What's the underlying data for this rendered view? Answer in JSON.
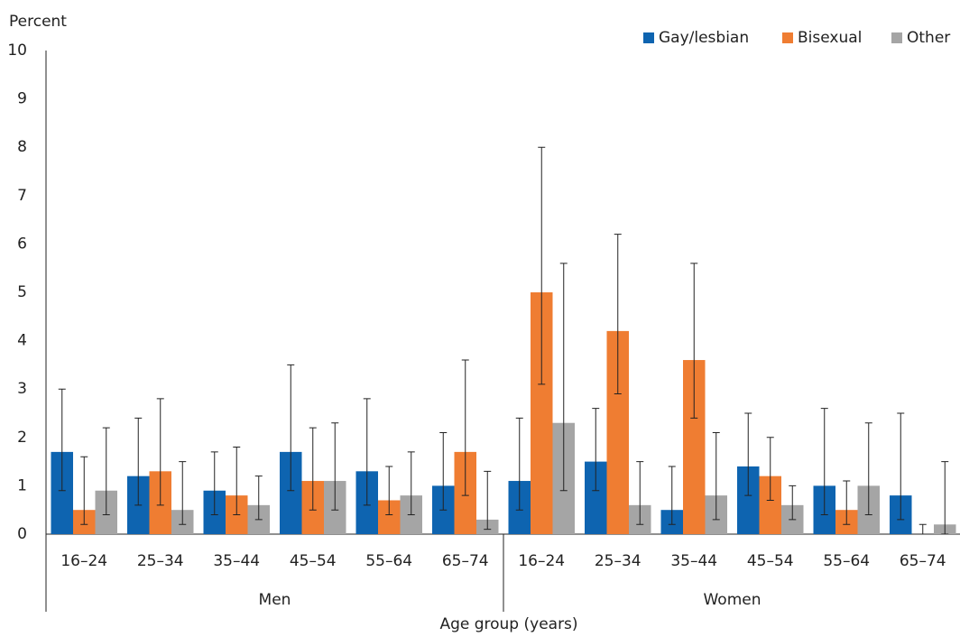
{
  "chart_data": {
    "type": "bar",
    "y_label": "Percent",
    "x_label": "Age group (years)",
    "groups": [
      {
        "label": "Men",
        "categories": [
          "16–24",
          "25–34",
          "35–44",
          "45–54",
          "55–64",
          "65–74"
        ]
      },
      {
        "label": "Women",
        "categories": [
          "16–24",
          "25–34",
          "35–44",
          "45–54",
          "55–64",
          "65–74"
        ]
      }
    ],
    "series": [
      {
        "name": "Gay/lesbian",
        "color": "#0e64b0",
        "values": [
          1.7,
          1.2,
          0.9,
          1.7,
          1.3,
          1.0,
          1.1,
          1.5,
          0.5,
          1.4,
          1.0,
          0.8
        ],
        "ci_low": [
          0.9,
          0.6,
          0.4,
          0.9,
          0.6,
          0.5,
          0.5,
          0.9,
          0.2,
          0.8,
          0.4,
          0.3
        ],
        "ci_high": [
          3.0,
          2.4,
          1.7,
          3.5,
          2.8,
          2.1,
          2.4,
          2.6,
          1.4,
          2.5,
          2.6,
          2.5
        ]
      },
      {
        "name": "Bisexual",
        "color": "#ef7d32",
        "values": [
          0.5,
          1.3,
          0.8,
          1.1,
          0.7,
          1.7,
          5.0,
          4.2,
          3.6,
          1.2,
          0.5,
          0
        ],
        "ci_low": [
          0.2,
          0.6,
          0.4,
          0.5,
          0.4,
          0.8,
          3.1,
          2.9,
          2.4,
          0.7,
          0.2,
          0
        ],
        "ci_high": [
          1.6,
          2.8,
          1.8,
          2.2,
          1.4,
          3.6,
          8.0,
          6.2,
          5.6,
          2.0,
          1.1,
          0.2
        ]
      },
      {
        "name": "Other",
        "color": "#a5a5a5",
        "values": [
          0.9,
          0.5,
          0.6,
          1.1,
          0.8,
          0.3,
          2.3,
          0.6,
          0.8,
          0.6,
          1.0,
          0.2
        ],
        "ci_low": [
          0.4,
          0.2,
          0.3,
          0.5,
          0.4,
          0.1,
          0.9,
          0.2,
          0.3,
          0.3,
          0.4,
          0
        ],
        "ci_high": [
          2.2,
          1.5,
          1.2,
          2.3,
          1.7,
          1.3,
          5.6,
          1.5,
          2.1,
          1.0,
          2.3,
          1.5
        ]
      }
    ],
    "ylim": [
      0,
      10
    ],
    "yticks": [
      0,
      1,
      2,
      3,
      4,
      5,
      6,
      7,
      8,
      9,
      10
    ],
    "grid": false,
    "legend": "top-right"
  }
}
